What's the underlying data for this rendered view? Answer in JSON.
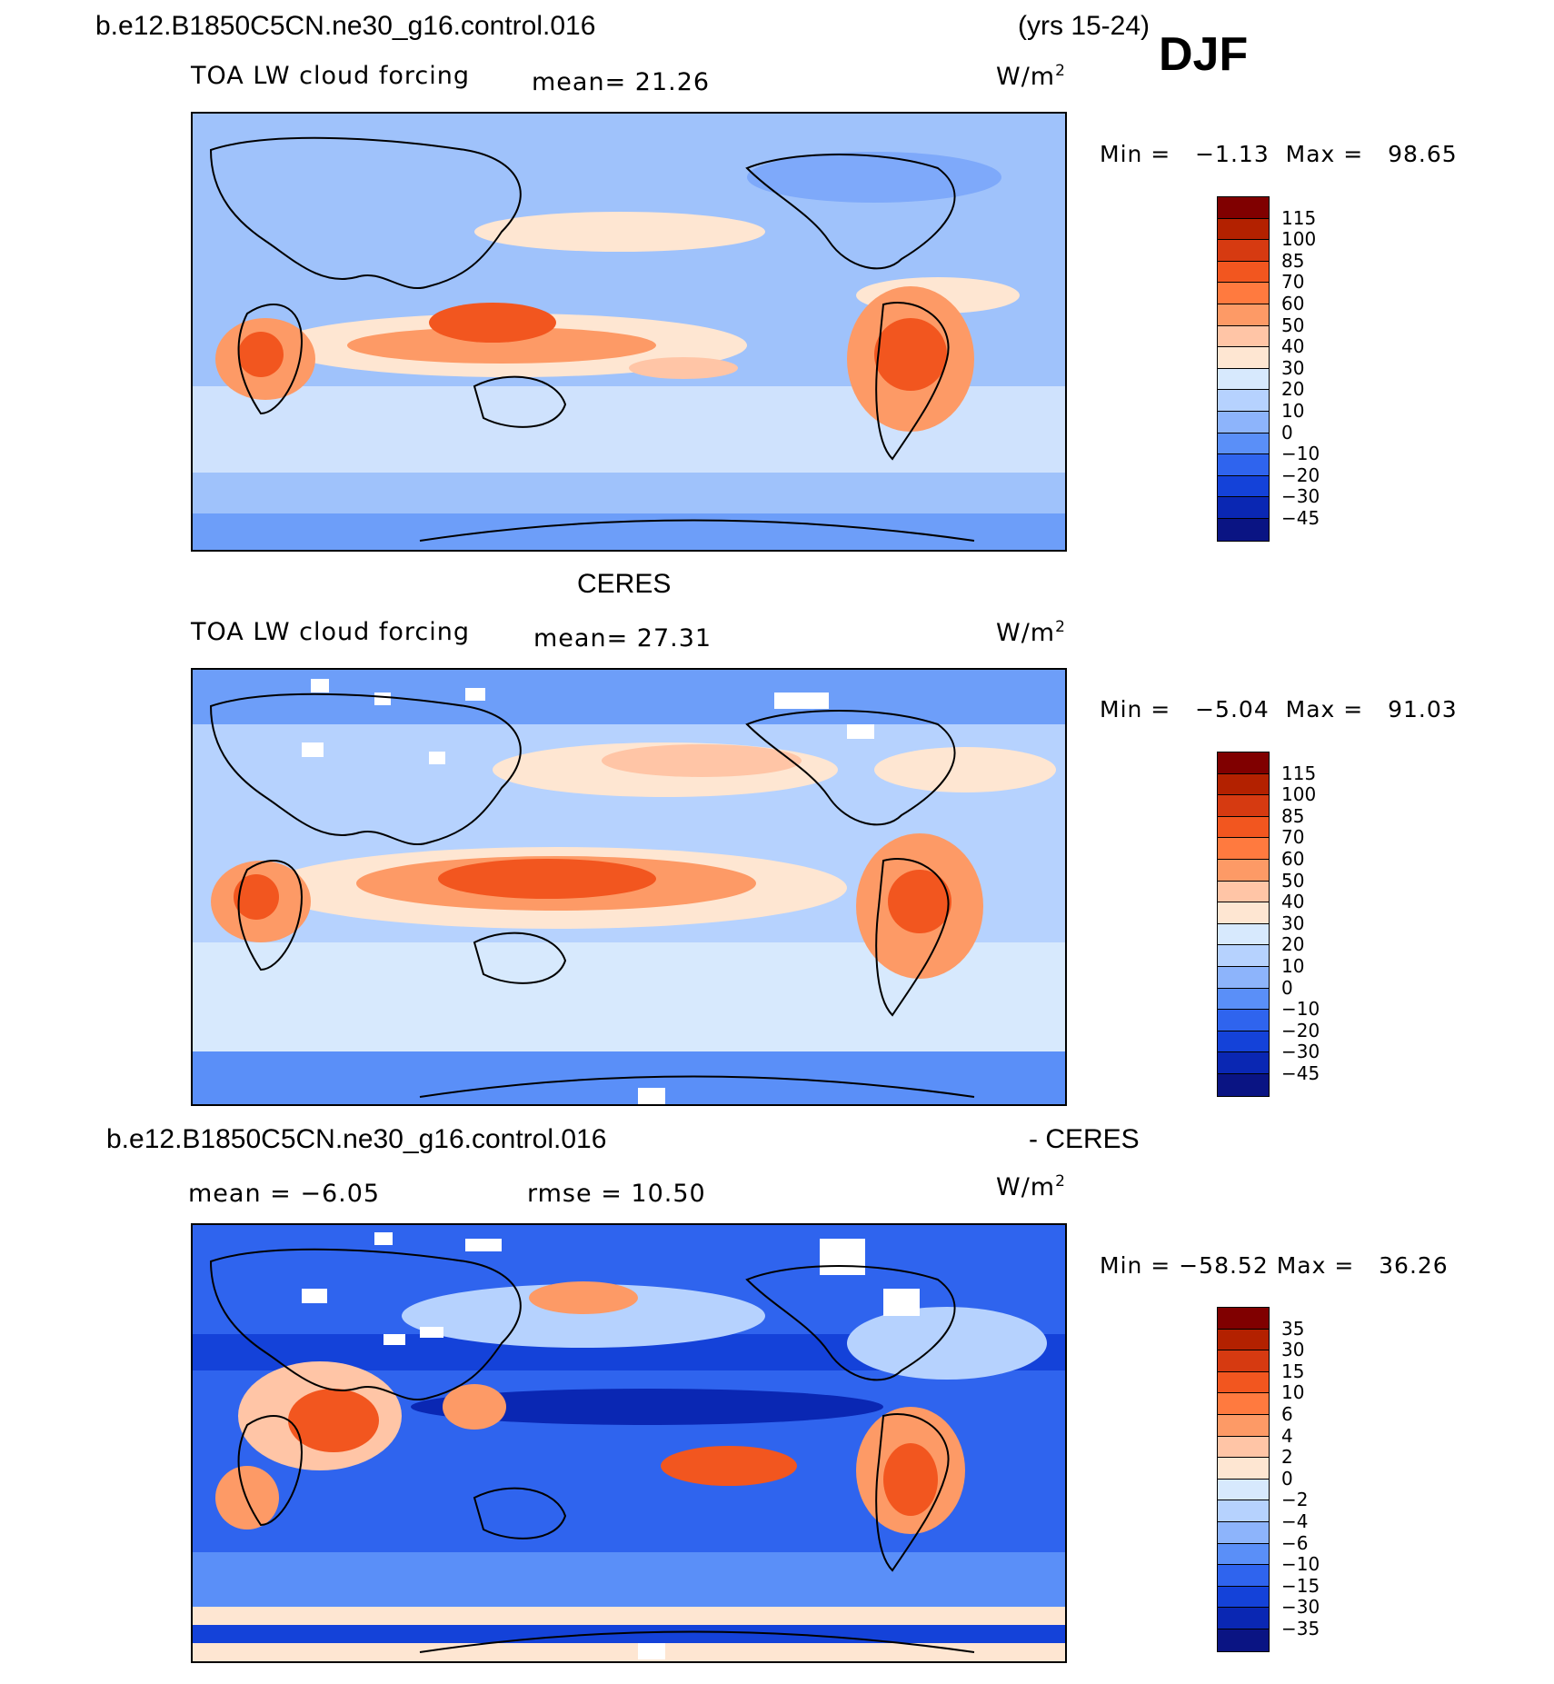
{
  "header": {
    "case_name": "b.e12.B1850C5CN.ne30_g16.control.016",
    "years": "(yrs 15-24)",
    "season": "DJF"
  },
  "panels": [
    {
      "title": "",
      "left_label": "TOA LW cloud forcing",
      "mean_text": "mean=   21.26",
      "units": "W/m",
      "units_sup": "2",
      "min_label": "Min  =",
      "min_value": "−1.13",
      "max_label": "Max  =",
      "max_value": "98.65",
      "colorbar_labels": [
        "115",
        "100",
        "85",
        "70",
        "60",
        "50",
        "40",
        "30",
        "20",
        "10",
        "0",
        "−10",
        "−20",
        "−30",
        "−45"
      ]
    },
    {
      "title": "CERES",
      "left_label": "TOA LW cloud forcing",
      "mean_text": "mean=   27.31",
      "units": "W/m",
      "units_sup": "2",
      "min_label": "Min  =",
      "min_value": "−5.04",
      "max_label": "Max  =",
      "max_value": "91.03",
      "colorbar_labels": [
        "115",
        "100",
        "85",
        "70",
        "60",
        "50",
        "40",
        "30",
        "20",
        "10",
        "0",
        "−10",
        "−20",
        "−30",
        "−45"
      ]
    },
    {
      "title_left": "b.e12.B1850C5CN.ne30_g16.control.016",
      "title_right": "- CERES",
      "mean_text": "mean  =   −6.05",
      "rmse_text": "rmse  =    10.50",
      "units": "W/m",
      "units_sup": "2",
      "min_label": "Min  =",
      "min_value": "−58.52",
      "max_label": "Max  =",
      "max_value": "36.26",
      "colorbar_labels": [
        "35",
        "30",
        "15",
        "10",
        "6",
        "4",
        "2",
        "0",
        "−2",
        "−4",
        "−6",
        "−10",
        "−15",
        "−30",
        "−35"
      ]
    }
  ],
  "colors": {
    "abs_scale": [
      "#800000",
      "#b32100",
      "#d63a11",
      "#f2561f",
      "#ff7a3f",
      "#fd9a66",
      "#ffc5a6",
      "#fee6d2",
      "#d7e9fd",
      "#b6d2fe",
      "#8db4fb",
      "#5a8ff8",
      "#2f64ee",
      "#1442d9",
      "#0a27b3",
      "#0a1483"
    ],
    "diff_scale": [
      "#800000",
      "#b32100",
      "#d63a11",
      "#f2561f",
      "#ff7a3f",
      "#fd9a66",
      "#ffc5a6",
      "#fee6d2",
      "#d7e9fd",
      "#b6d2fe",
      "#8db4fb",
      "#5a8ff8",
      "#2f64ee",
      "#1442d9",
      "#0a27b3",
      "#0a1483"
    ]
  }
}
